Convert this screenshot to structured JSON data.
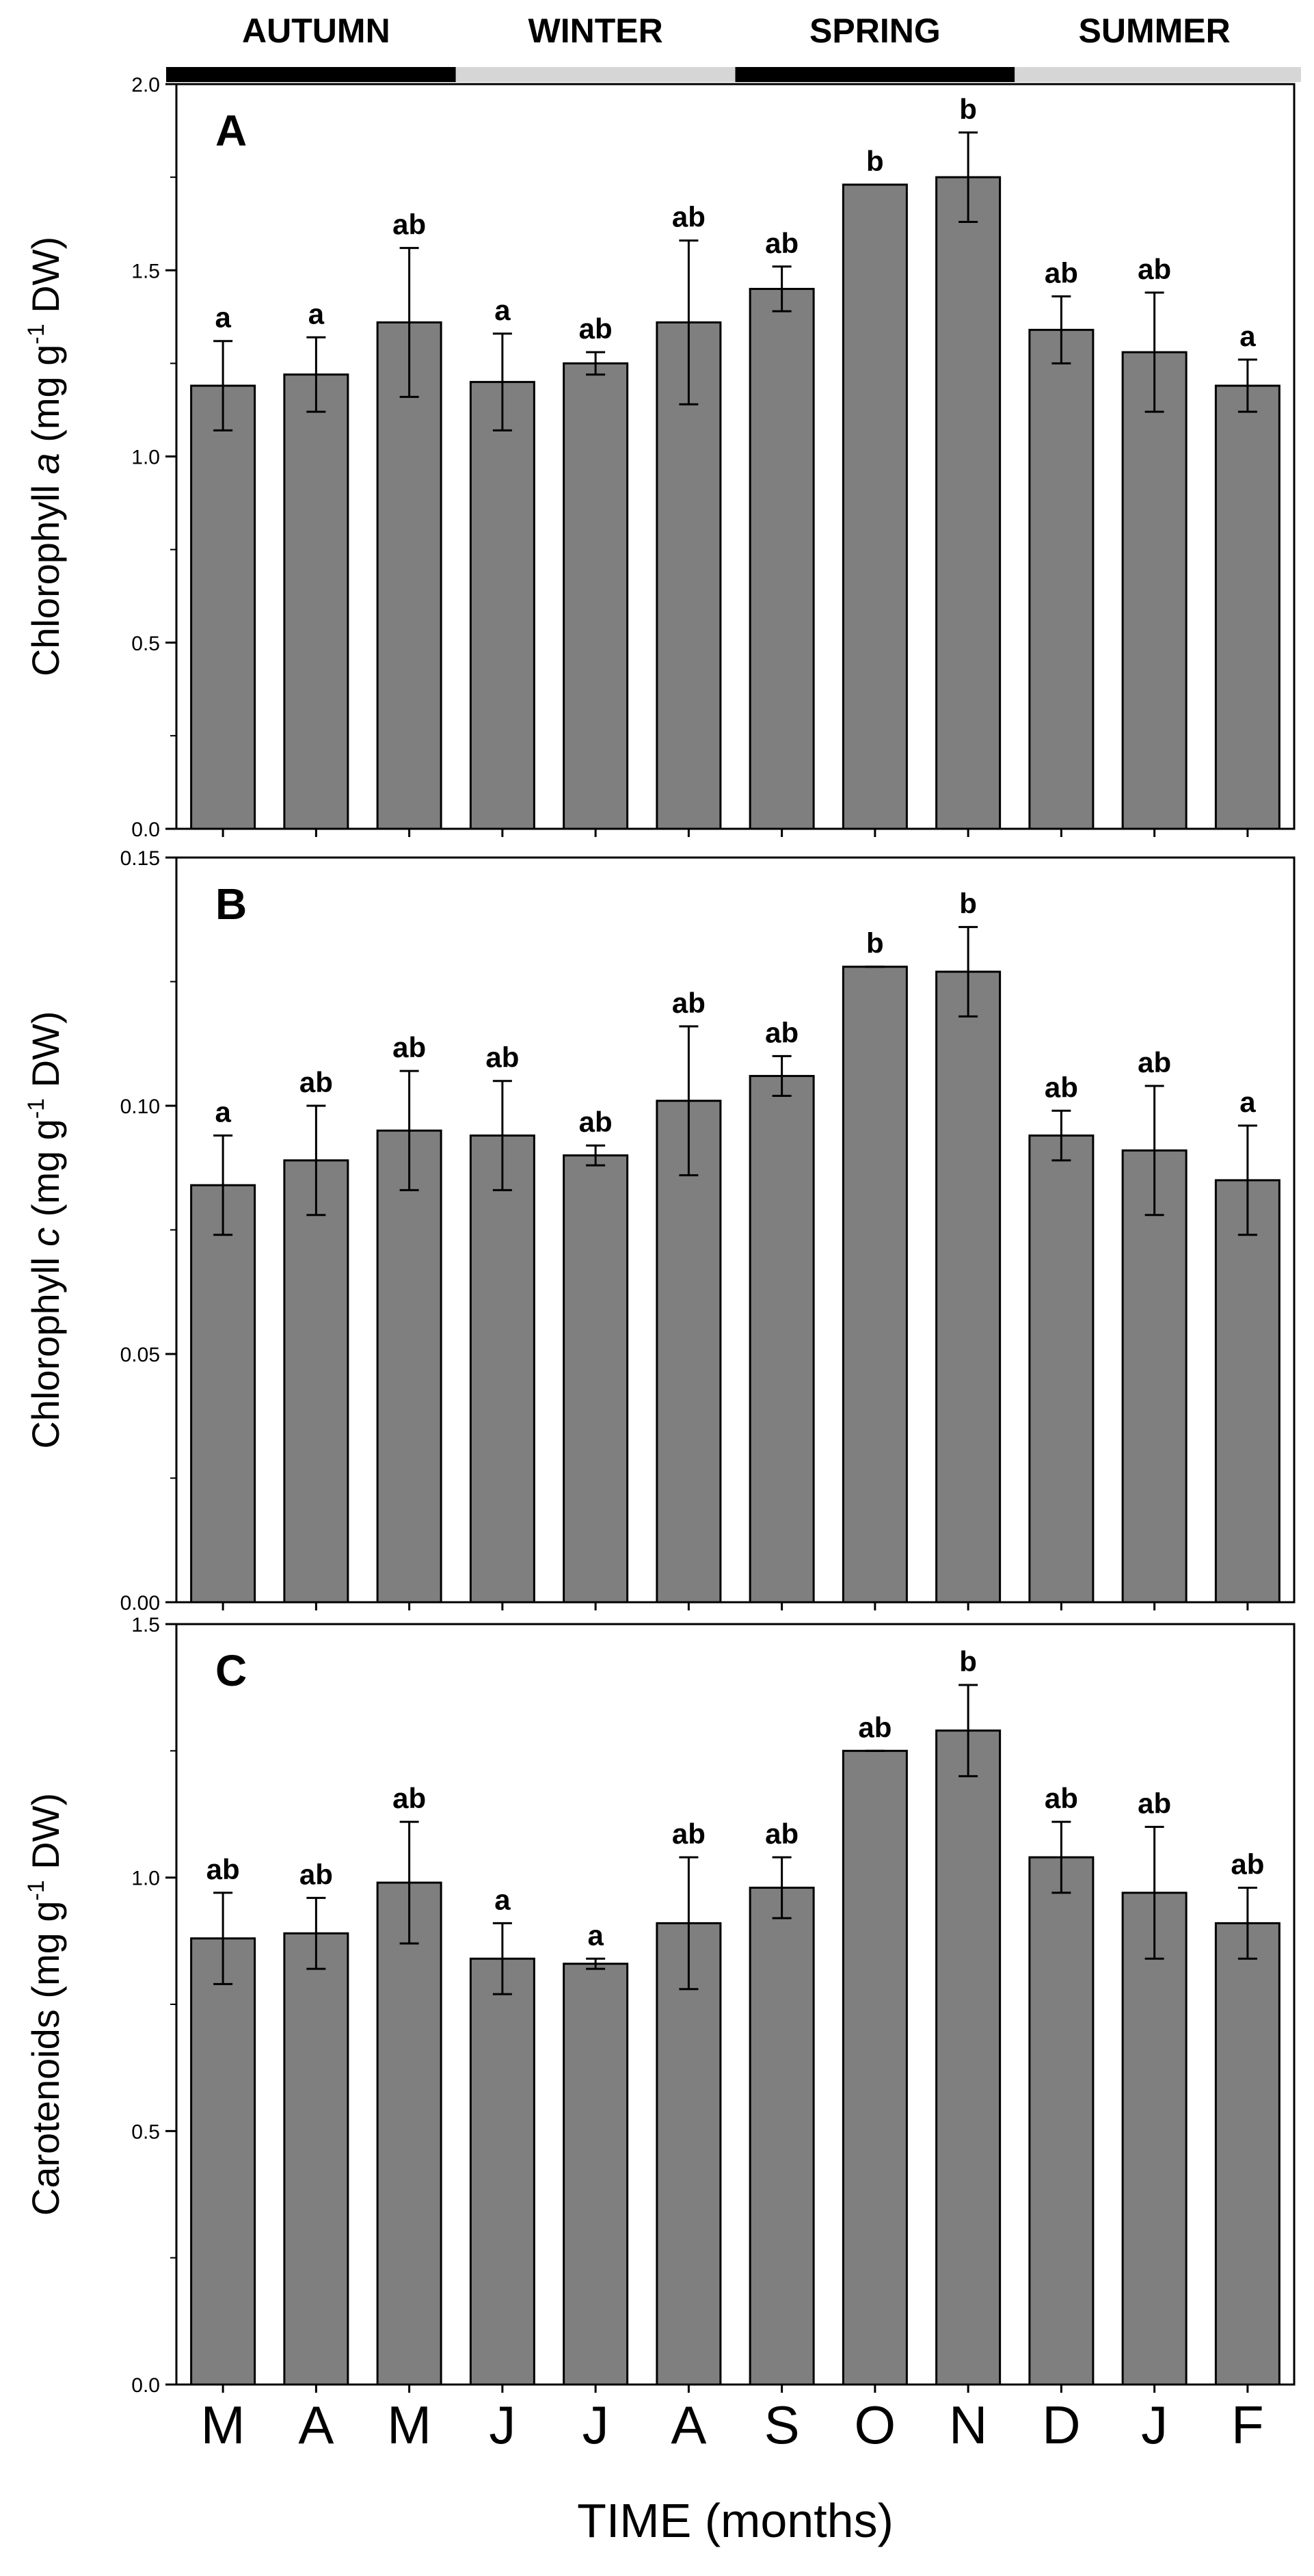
{
  "colors": {
    "bar_fill": "#7f7f7f",
    "bar_stroke": "#000000",
    "season_dark": "#000000",
    "season_light": "#d6d6d6"
  },
  "seasons": [
    {
      "label": "AUTUMN",
      "shade": "dark",
      "start": 0,
      "end": 3
    },
    {
      "label": "WINTER",
      "shade": "light",
      "start": 3,
      "end": 6
    },
    {
      "label": "SPRING",
      "shade": "dark",
      "start": 6,
      "end": 9
    },
    {
      "label": "SUMMER",
      "shade": "light",
      "start": 9,
      "end": 12
    }
  ],
  "chart_data": [
    {
      "type": "bar",
      "panel": "A",
      "ylabel_pre": "Chlorophyll ",
      "ylabel_var": "a",
      "ylabel_mid": " (mg g",
      "ylabel_sup": "-1",
      "ylabel_post": " DW)",
      "ylim": [
        0,
        2.0
      ],
      "yticks": [
        0.0,
        0.5,
        1.0,
        1.5,
        2.0
      ],
      "ytick_labels": [
        "0.0",
        "0.5",
        "1.0",
        "1.5",
        "2.0"
      ],
      "categories": [
        "M",
        "A",
        "M",
        "J",
        "J",
        "A",
        "S",
        "O",
        "N",
        "D",
        "J",
        "F"
      ],
      "values": [
        1.19,
        1.22,
        1.36,
        1.2,
        1.25,
        1.36,
        1.45,
        1.73,
        1.75,
        1.34,
        1.28,
        1.19
      ],
      "errors": [
        0.12,
        0.1,
        0.2,
        0.13,
        0.03,
        0.22,
        0.06,
        0.0,
        0.12,
        0.09,
        0.16,
        0.07
      ],
      "significance": [
        "a",
        "a",
        "ab",
        "a",
        "ab",
        "ab",
        "ab",
        "b",
        "b",
        "ab",
        "ab",
        "a"
      ]
    },
    {
      "type": "bar",
      "panel": "B",
      "ylabel_pre": "Chlorophyll ",
      "ylabel_var": "c",
      "ylabel_mid": " (mg g",
      "ylabel_sup": "-1",
      "ylabel_post": " DW)",
      "ylim": [
        0,
        0.15
      ],
      "yticks": [
        0.0,
        0.05,
        0.1,
        0.15
      ],
      "ytick_labels": [
        "0.00",
        "0.05",
        "0.10",
        "0.15"
      ],
      "categories": [
        "M",
        "A",
        "M",
        "J",
        "J",
        "A",
        "S",
        "O",
        "N",
        "D",
        "J",
        "F"
      ],
      "values": [
        0.084,
        0.089,
        0.095,
        0.094,
        0.09,
        0.101,
        0.106,
        0.128,
        0.127,
        0.094,
        0.091,
        0.085
      ],
      "errors": [
        0.01,
        0.011,
        0.012,
        0.011,
        0.002,
        0.015,
        0.004,
        0.0,
        0.009,
        0.005,
        0.013,
        0.011
      ],
      "significance": [
        "a",
        "ab",
        "ab",
        "ab",
        "ab",
        "ab",
        "ab",
        "b",
        "b",
        "ab",
        "ab",
        "a"
      ]
    },
    {
      "type": "bar",
      "panel": "C",
      "ylabel_pre": "Carotenoids",
      "ylabel_var": "",
      "ylabel_mid": " (mg g",
      "ylabel_sup": "-1",
      "ylabel_post": " DW)",
      "ylim": [
        0,
        1.5
      ],
      "yticks": [
        0.0,
        0.5,
        1.0,
        1.5
      ],
      "ytick_labels": [
        "0.0",
        "0.5",
        "1.0",
        "1.5"
      ],
      "categories": [
        "M",
        "A",
        "M",
        "J",
        "J",
        "A",
        "S",
        "O",
        "N",
        "D",
        "J",
        "F"
      ],
      "values": [
        0.88,
        0.89,
        0.99,
        0.84,
        0.83,
        0.91,
        0.98,
        1.25,
        1.29,
        1.04,
        0.97,
        0.91
      ],
      "errors": [
        0.09,
        0.07,
        0.12,
        0.07,
        0.01,
        0.13,
        0.06,
        0.0,
        0.09,
        0.07,
        0.13,
        0.07
      ],
      "significance": [
        "ab",
        "ab",
        "ab",
        "a",
        "a",
        "ab",
        "ab",
        "ab",
        "b",
        "ab",
        "ab",
        "ab"
      ],
      "xlabel": "TIME (months)"
    }
  ]
}
